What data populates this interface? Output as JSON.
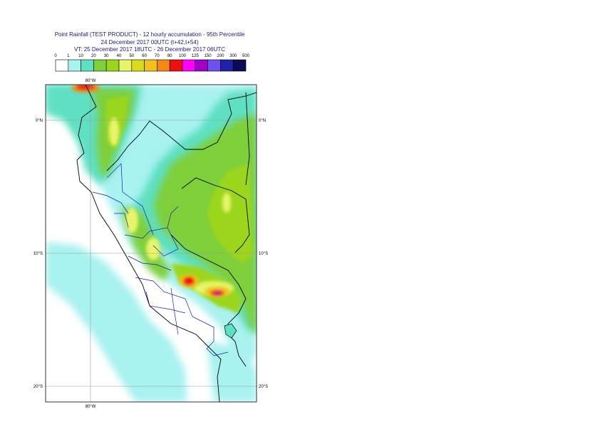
{
  "title": {
    "line1": "Point Rainfall (TEST PRODUCT) - 12 hourly accumulation - 95th Percentile",
    "line2": "24 December 2017 00UTC (t+42,t+54)",
    "line3": "VT: 25 December 2017 18UTC - 26 December 2017 06UTC"
  },
  "legend": {
    "thresholds": [
      "0",
      "1",
      "10",
      "20",
      "30",
      "40",
      "50",
      "60",
      "70",
      "80",
      "100",
      "125",
      "150",
      "200",
      "300",
      "500"
    ],
    "colors": [
      "#ffffff",
      "#a8f2f0",
      "#5ee0c2",
      "#7fcf3a",
      "#9bd61a",
      "#e6f56a",
      "#d8dc1a",
      "#f2c21a",
      "#f08a12",
      "#ee1010",
      "#ff00ff",
      "#a000c8",
      "#7050f0",
      "#2020a8",
      "#0a0a58"
    ]
  },
  "axes": {
    "lon_top": "80°W",
    "lon_bottom": "80°W",
    "lat_left": [
      "0°N",
      "10°S",
      "20°S"
    ],
    "lat_right": [
      "0°N",
      "10°S",
      "20°S"
    ]
  },
  "colors": {
    "sea_light": "#a8f2f0",
    "border_country": "#000000",
    "border_region": "#1a1ab4"
  }
}
